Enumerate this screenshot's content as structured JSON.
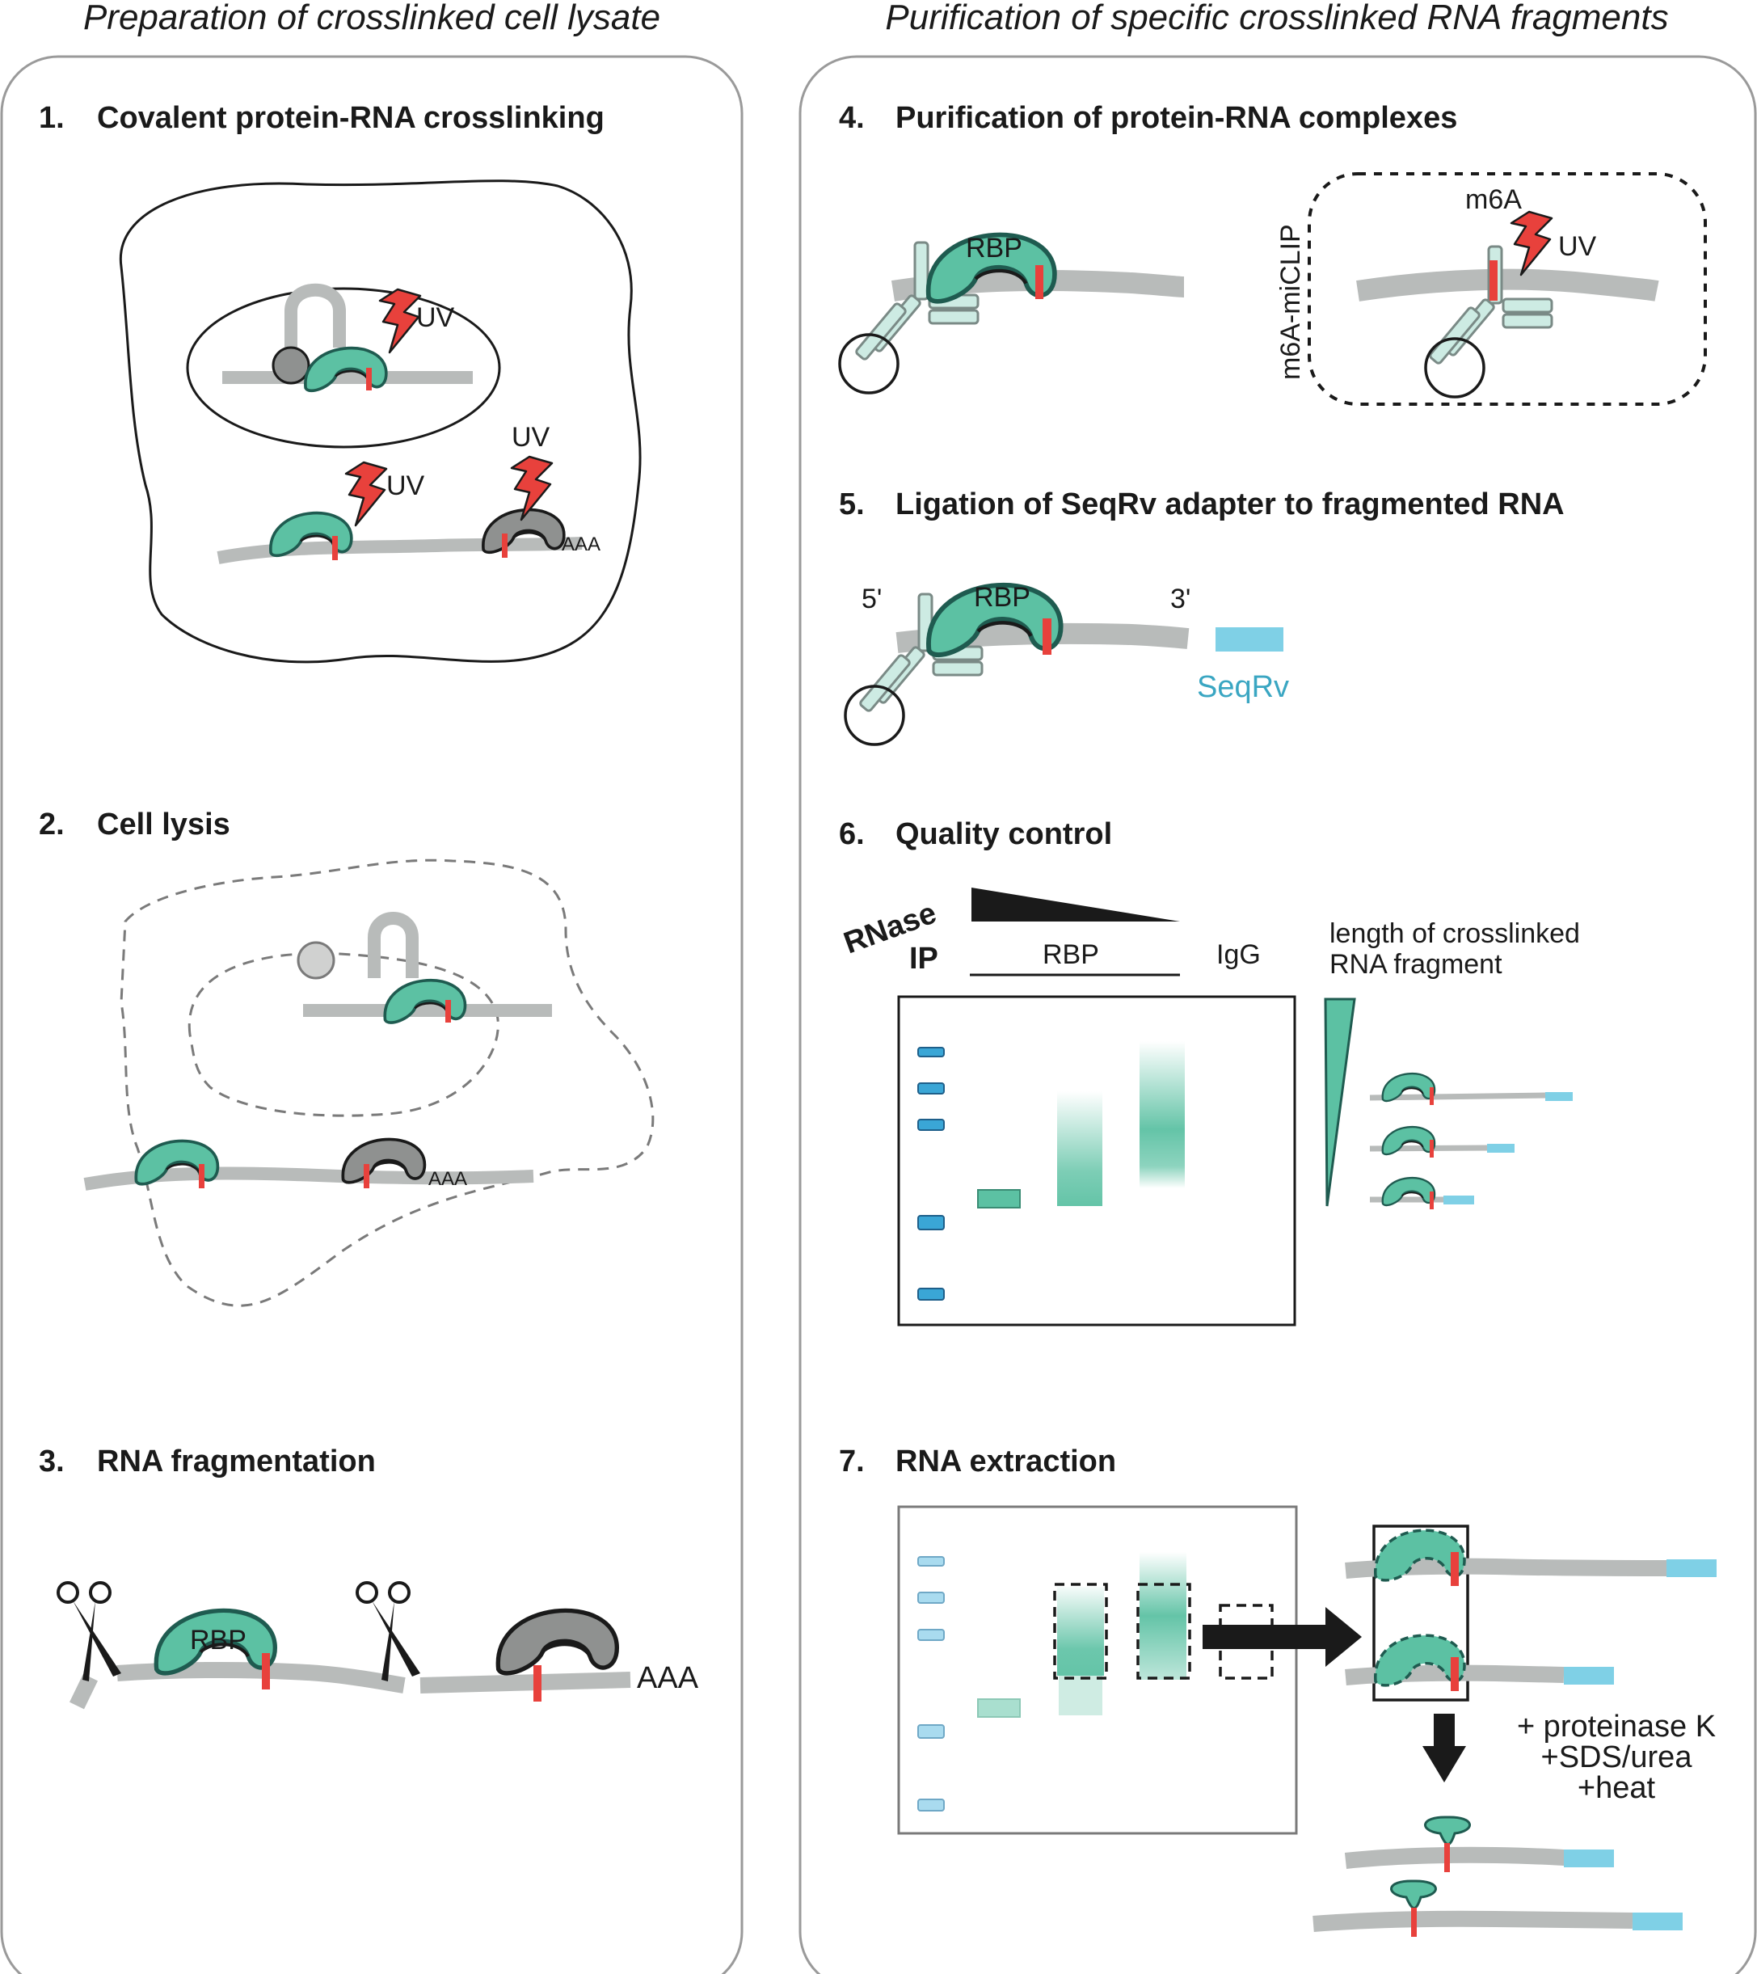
{
  "panels": {
    "left_title": "Preparation of crosslinked cell lysate",
    "right_title": "Purification of specific crosslinked RNA fragments"
  },
  "steps": [
    {
      "num": "1.",
      "title": "Covalent protein-RNA crosslinking"
    },
    {
      "num": "2.",
      "title": "Cell lysis"
    },
    {
      "num": "3.",
      "title": "RNA fragmentation"
    },
    {
      "num": "4.",
      "title": "Purification of protein-RNA complexes"
    },
    {
      "num": "5.",
      "title": "Ligation of SeqRv adapter to fragmented RNA"
    },
    {
      "num": "6.",
      "title": "Quality control"
    },
    {
      "num": "7.",
      "title": "RNA extraction"
    }
  ],
  "labels": {
    "uv": "UV",
    "aaa": "AAA",
    "rbp": "RBP",
    "m6a": "m6A",
    "m6a_miclip": "m6A-miCLIP",
    "five_prime": "5'",
    "three_prime": "3'",
    "seqrv": "SeqRv",
    "rnase": "RNase",
    "ip": "IP",
    "igg": "IgG",
    "fragment_length_line1": "length of crosslinked",
    "fragment_length_line2": "RNA fragment",
    "proteinase": "+ proteinase K",
    "sds_urea": "+SDS/urea",
    "heat": "+heat"
  },
  "colors": {
    "rbp_green": "#5cc1a3",
    "rbp_outline": "#1f5b50",
    "crosslink_red": "#e8413c",
    "rna_gray": "#b8bbba",
    "gray_protein": "#8f9190",
    "seqrv_blue": "#7fd0e6",
    "marker_blue": "#3aa6d6",
    "outline": "#1a1a1a"
  }
}
